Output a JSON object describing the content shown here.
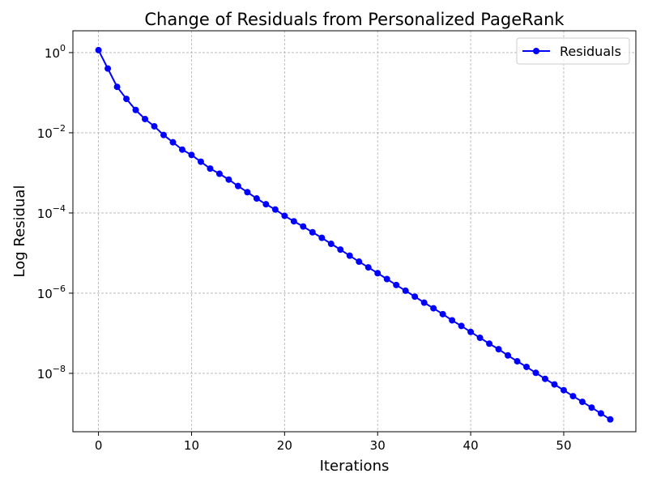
{
  "chart_data": {
    "type": "line",
    "title": "Change of Residuals from Personalized PageRank",
    "xlabel": "Iterations",
    "ylabel": "Log Residual",
    "xlim": [
      -2.75,
      57.75
    ],
    "ylim": [
      3.5e-10,
      3.5
    ],
    "yscale": "log",
    "grid": true,
    "legend_position": "top-right",
    "xticks": [
      0,
      10,
      20,
      30,
      40,
      50
    ],
    "yticks": [
      {
        "value": 1e-08,
        "base": "10",
        "exp": "−8"
      },
      {
        "value": 1e-06,
        "base": "10",
        "exp": "−6"
      },
      {
        "value": 0.0001,
        "base": "10",
        "exp": "−4"
      },
      {
        "value": 0.01,
        "base": "10",
        "exp": "−2"
      },
      {
        "value": 1,
        "base": "10",
        "exp": "0"
      }
    ],
    "series": [
      {
        "name": "Residuals",
        "color": "#0000ff",
        "x": [
          0,
          1,
          2,
          3,
          4,
          5,
          6,
          7,
          8,
          9,
          10,
          11,
          12,
          13,
          14,
          15,
          16,
          17,
          18,
          19,
          20,
          21,
          22,
          23,
          24,
          25,
          26,
          27,
          28,
          29,
          30,
          31,
          32,
          33,
          34,
          35,
          36,
          37,
          38,
          39,
          40,
          41,
          42,
          43,
          44,
          45,
          46,
          47,
          48,
          49,
          50,
          51,
          52,
          53,
          54,
          55
        ],
        "y": [
          1.15,
          0.4,
          0.14,
          0.07,
          0.037,
          0.022,
          0.0145,
          0.0088,
          0.0058,
          0.0038,
          0.0028,
          0.0019,
          0.00128,
          0.00095,
          0.00068,
          0.00047,
          0.00033,
          0.00023,
          0.000165,
          0.000122,
          8.5e-05,
          6.2e-05,
          4.6e-05,
          3.3e-05,
          2.4e-05,
          1.7e-05,
          1.22e-05,
          8.6e-06,
          6.1e-06,
          4.4e-06,
          3.15e-06,
          2.25e-06,
          1.6e-06,
          1.15e-06,
          8.2e-07,
          5.8e-07,
          4.2e-07,
          3e-07,
          2.1e-07,
          1.52e-07,
          1.08e-07,
          7.7e-08,
          5.5e-08,
          4e-08,
          2.8e-08,
          2e-08,
          1.45e-08,
          1.03e-08,
          7.3e-09,
          5.3e-09,
          3.8e-09,
          2.7e-09,
          1.95e-09,
          1.4e-09,
          1e-09,
          7.1e-10
        ]
      }
    ]
  }
}
